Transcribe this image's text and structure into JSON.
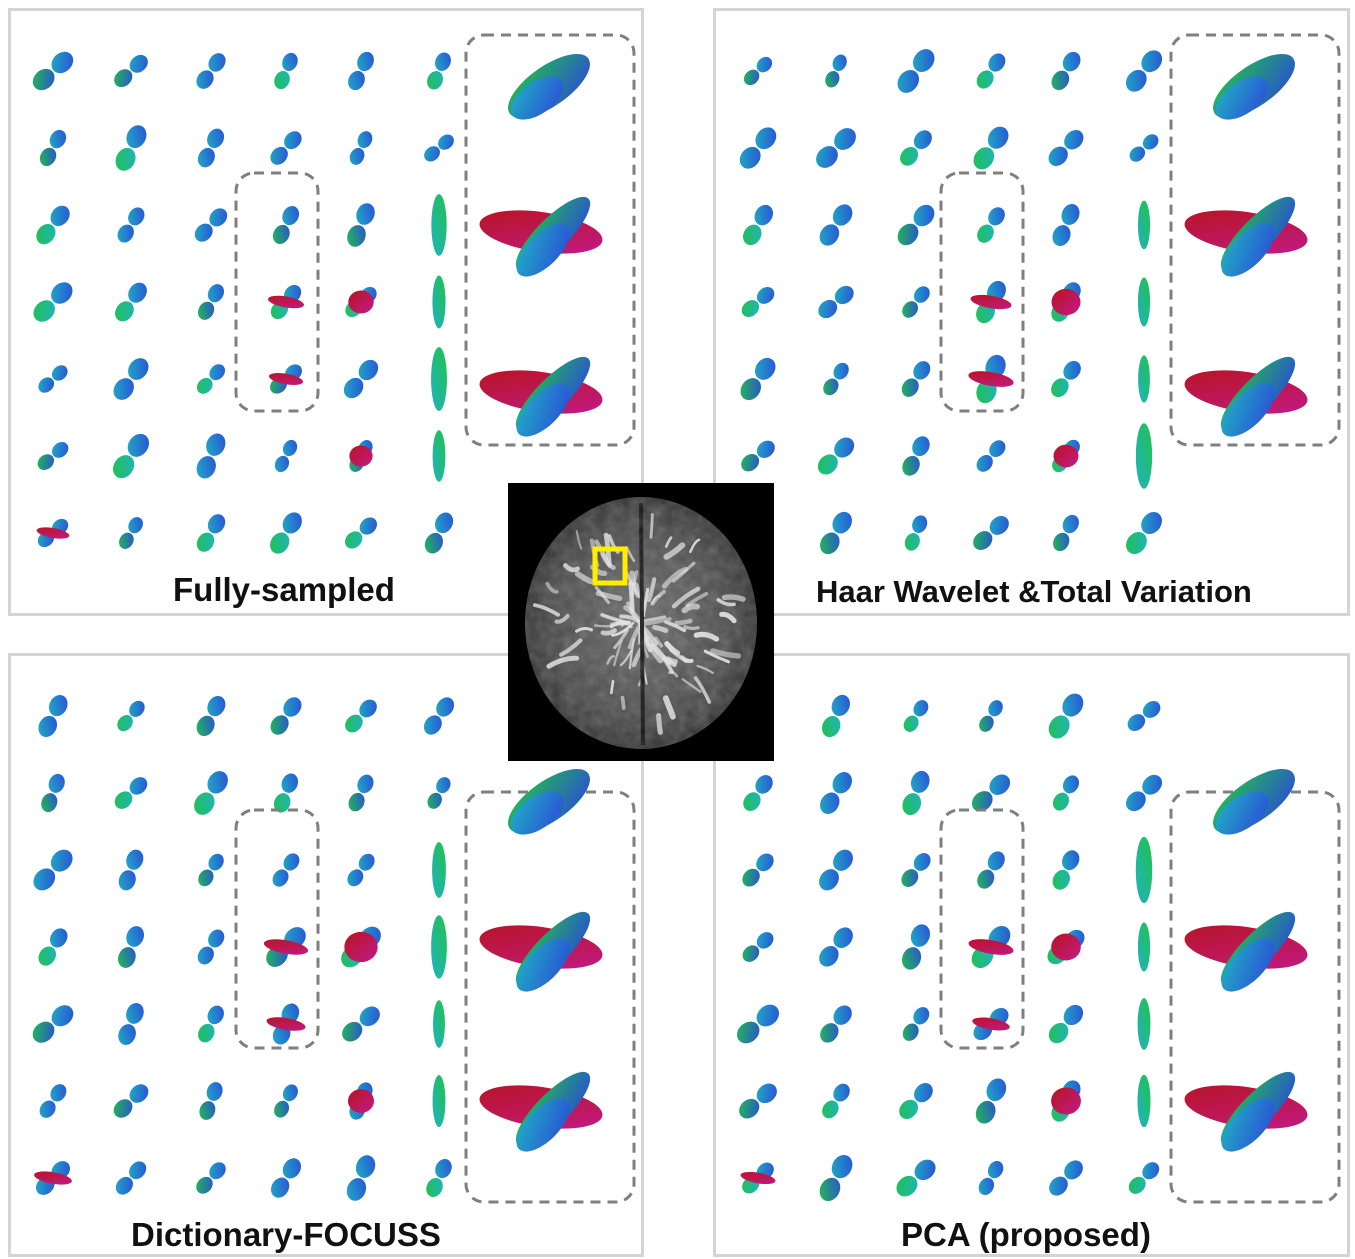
{
  "panels": [
    {
      "key": "fully",
      "caption": "Fully-sampled"
    },
    {
      "key": "haar",
      "caption": "Haar Wavelet &Total Variation"
    },
    {
      "key": "dict",
      "caption": "Dictionary-FOCUSS"
    },
    {
      "key": "pca",
      "caption": "PCA (proposed)"
    }
  ],
  "colors": {
    "panel_border": "#d4d4d4",
    "dashed_box": "#7f7f7f",
    "roi_box": "#ffee00",
    "glyph_blue": "#2a4bd8",
    "glyph_green": "#22c24a",
    "glyph_magenta": "#c21a8c",
    "glyph_red": "#b8141c",
    "glyph_cyan": "#1fb2c2"
  },
  "icons": [
    "odf-glyph-grid",
    "brain-slice-thumbnail",
    "roi-box"
  ]
}
